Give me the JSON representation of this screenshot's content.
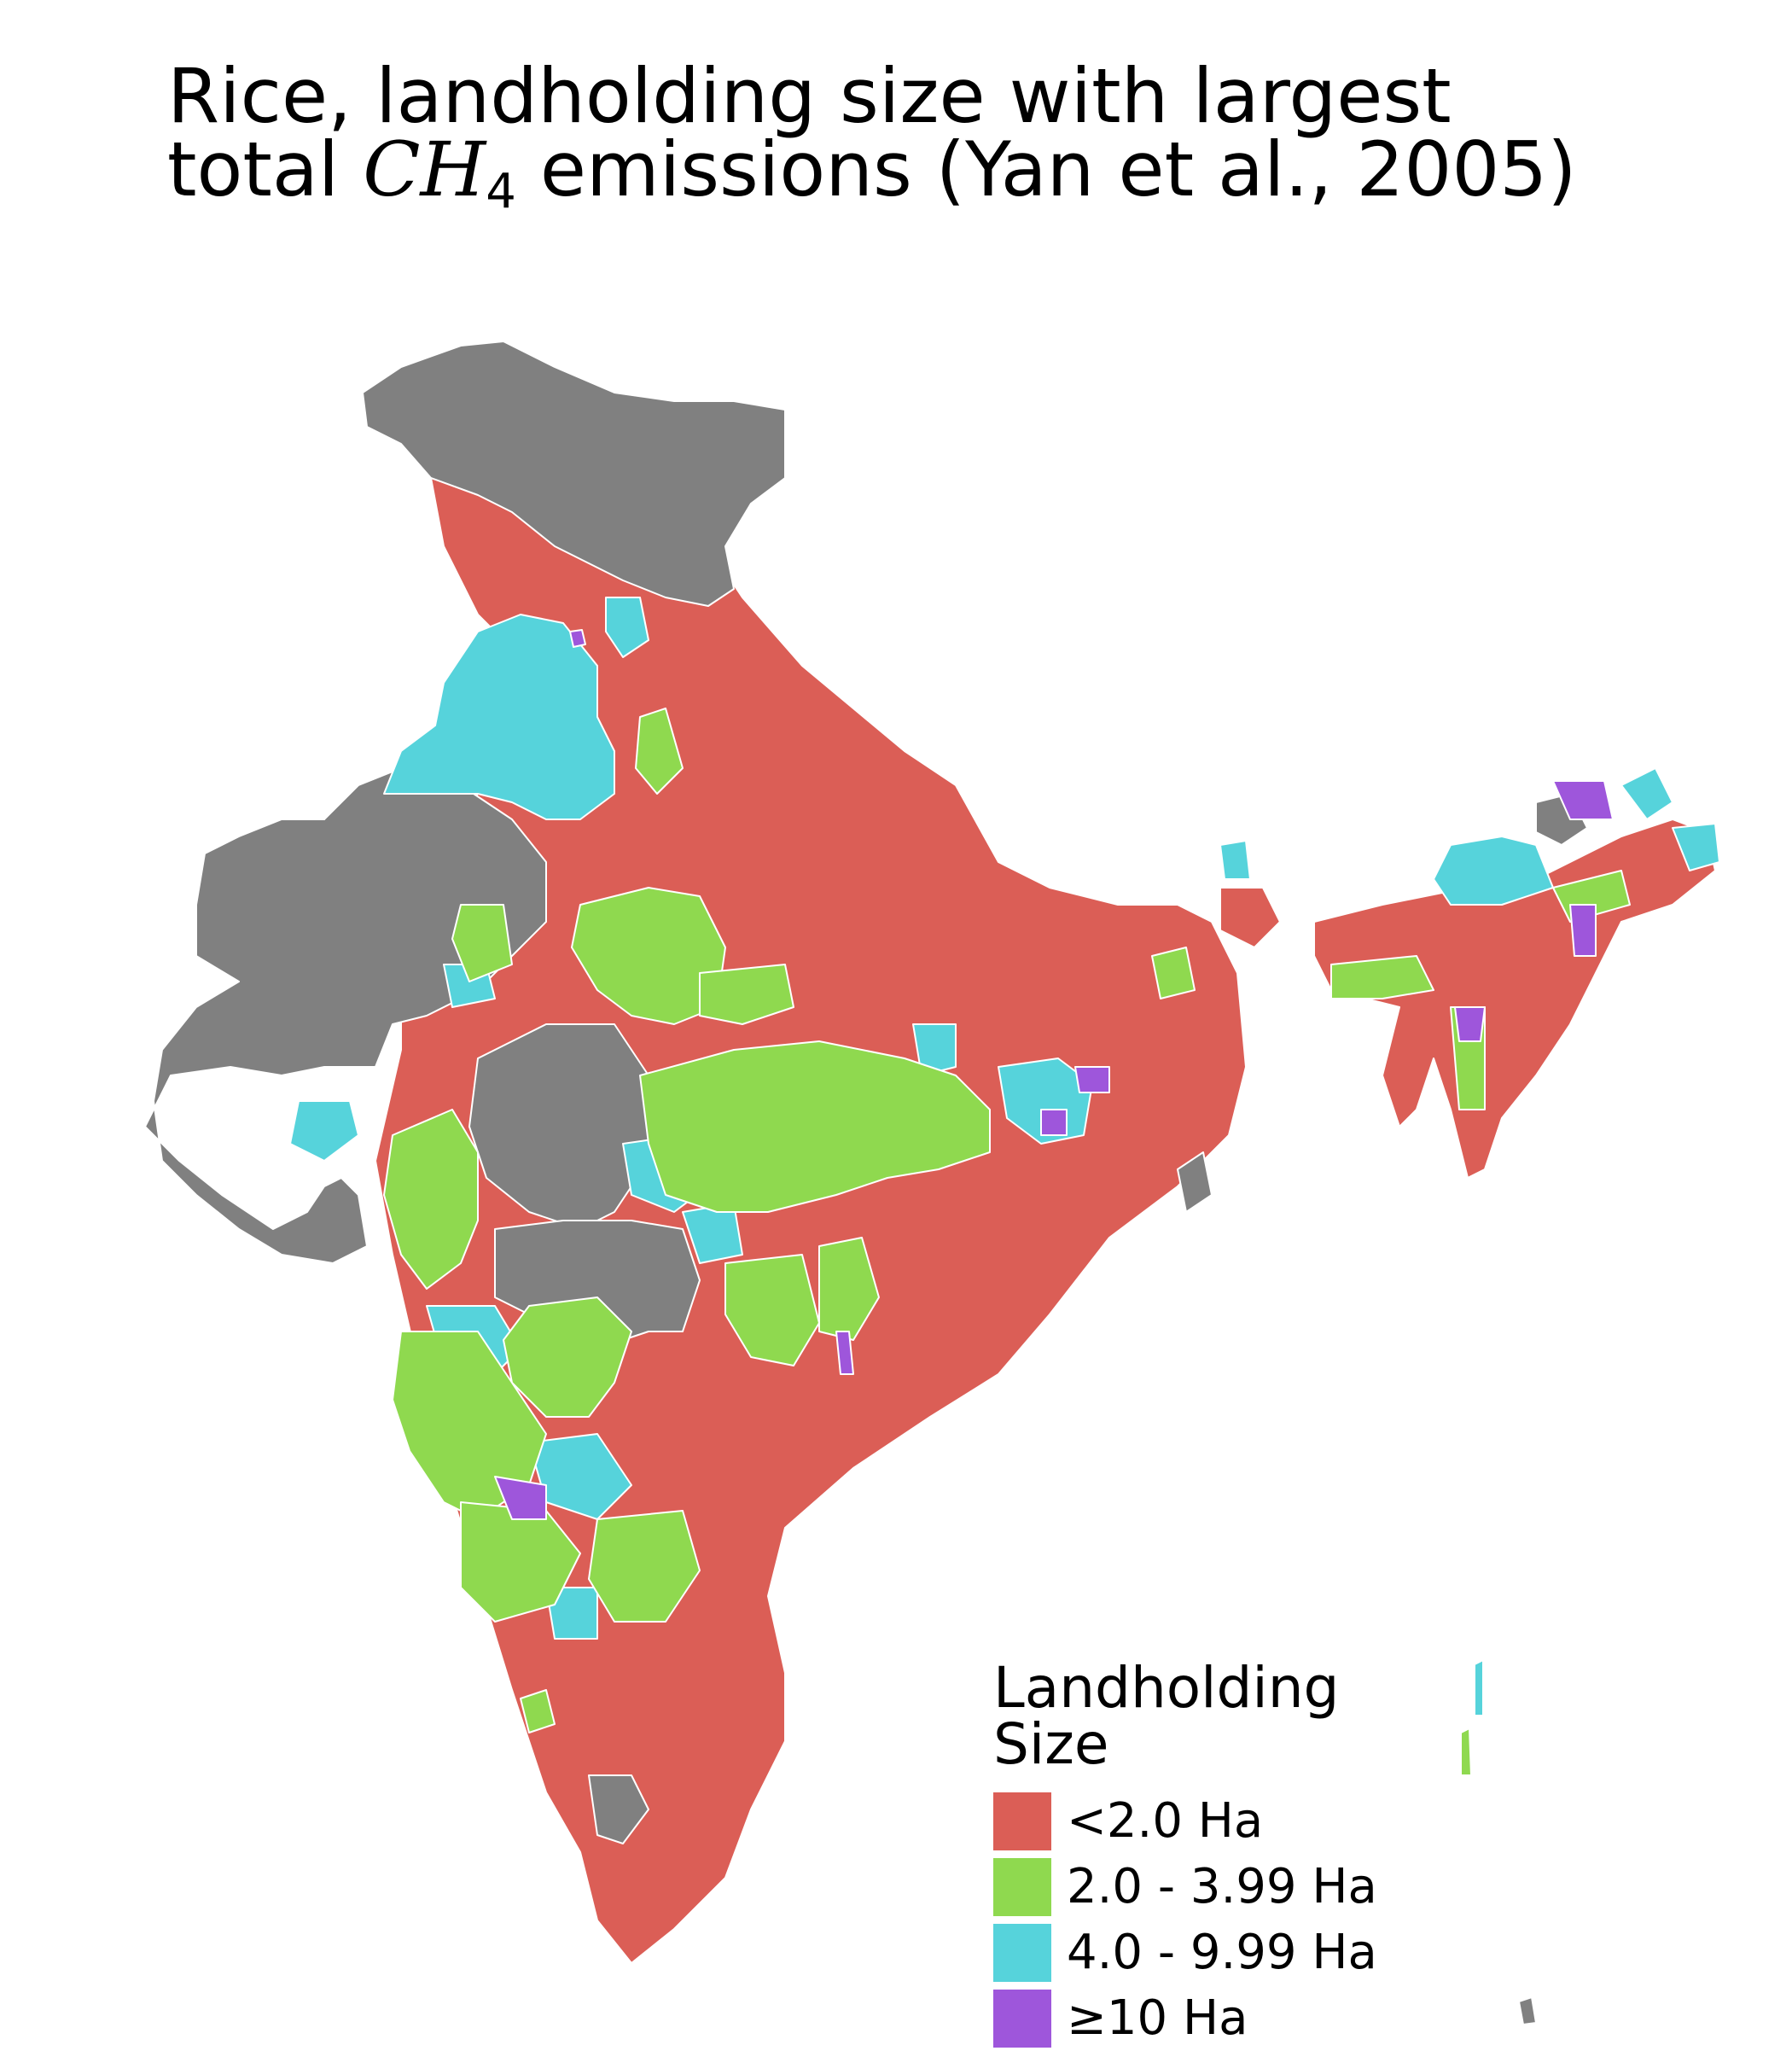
{
  "title": {
    "line1": "Rice, landholding size with largest",
    "line2_prefix": "total ",
    "line2_formula": "CH",
    "line2_subscript": "4",
    "line2_suffix": " emissions (Yan et al., 2005)"
  },
  "legend": {
    "title_line1": "Landholding",
    "title_line2": "Size",
    "items": [
      {
        "label": "<2.0 Ha",
        "color": "#db5e56"
      },
      {
        "label": "2.0 - 3.99 Ha",
        "color": "#8fd94f"
      },
      {
        "label": "4.0 - 9.99 Ha",
        "color": "#56d3db"
      },
      {
        "label": "≥10 Ha",
        "color": "#9e56db"
      }
    ]
  },
  "colors": {
    "no_data": "#808080",
    "border": "#ffffff",
    "background": "#ffffff"
  }
}
